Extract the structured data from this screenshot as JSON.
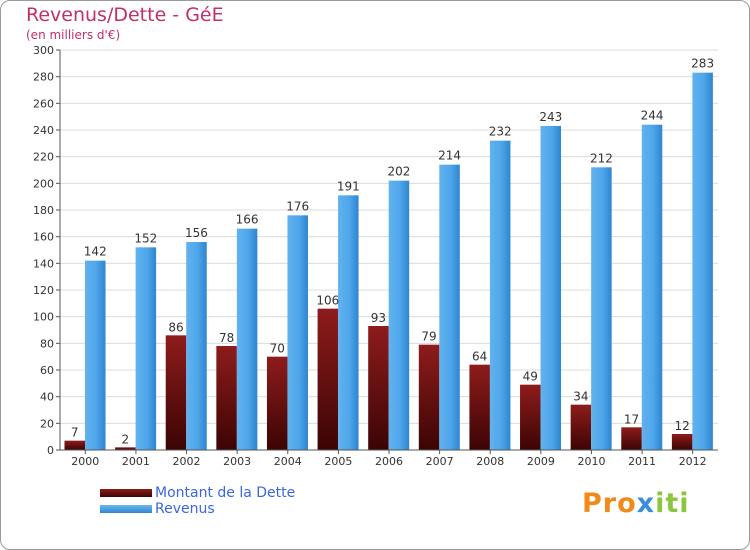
{
  "header": {
    "title": "Revenus/Dette - GéE",
    "subtitle": "(en milliers d'€)"
  },
  "legend": {
    "dette_label": "Montant de la Dette",
    "revenus_label": "Revenus"
  },
  "logo": {
    "part1": "Pro",
    "part2": "x",
    "part3": "iti"
  },
  "colors": {
    "dette": "#6e0f10",
    "revenus": "#4aa3e6",
    "title": "#c0306a",
    "legend_text": "#3a66e0"
  },
  "chart_data": {
    "type": "bar",
    "title": "Revenus/Dette - GéE",
    "ylabel": "(en milliers d'€)",
    "xlabel": "",
    "ylim": [
      0,
      300
    ],
    "yticks": [
      0,
      20,
      40,
      60,
      80,
      100,
      120,
      140,
      160,
      180,
      200,
      220,
      240,
      260,
      280,
      300
    ],
    "grid": true,
    "legend_position": "bottom-left",
    "categories": [
      "2000",
      "2001",
      "2002",
      "2003",
      "2004",
      "2005",
      "2006",
      "2007",
      "2008",
      "2009",
      "2010",
      "2011",
      "2012"
    ],
    "series": [
      {
        "name": "Montant de la Dette",
        "values": [
          7,
          2,
          86,
          78,
          70,
          106,
          93,
          79,
          64,
          49,
          34,
          17,
          12
        ]
      },
      {
        "name": "Revenus",
        "values": [
          142,
          152,
          156,
          166,
          176,
          191,
          202,
          214,
          232,
          243,
          212,
          244,
          283
        ]
      }
    ]
  }
}
